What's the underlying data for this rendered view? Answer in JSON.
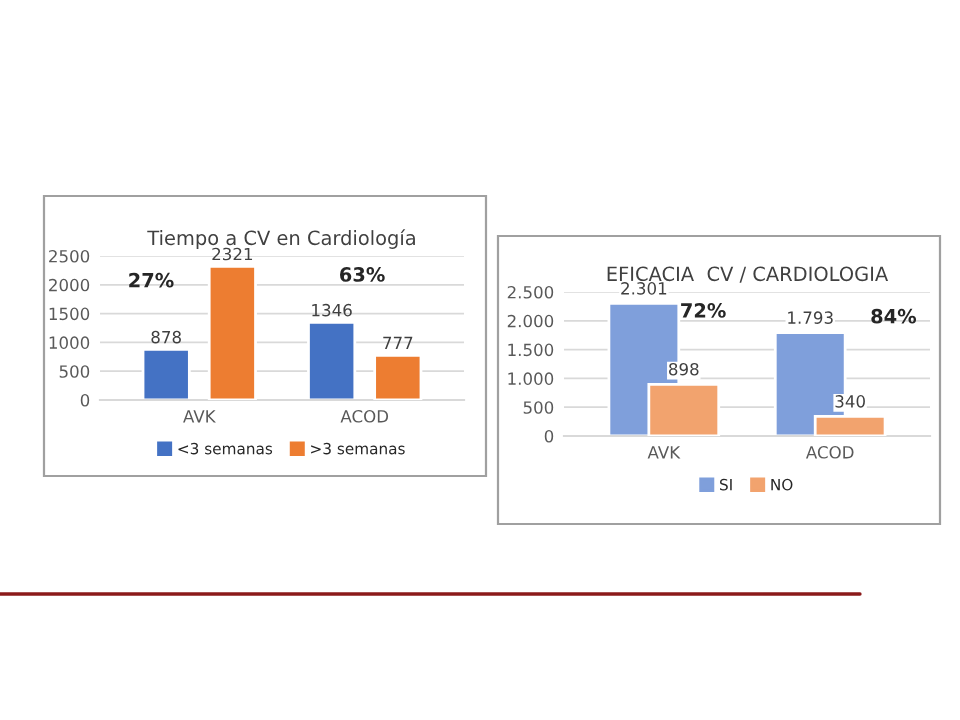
{
  "chart_data": [
    {
      "type": "bar",
      "title": "Tiempo a CV en Cardiología",
      "categories": [
        "AVK",
        "ACOD"
      ],
      "series": [
        {
          "name": "<3 semanas",
          "color": "#4472c4",
          "values": [
            878,
            1346
          ]
        },
        {
          "name": ">3 semanas",
          "color": "#ed7d31",
          "values": [
            2321,
            777
          ]
        }
      ],
      "ylim": [
        0,
        2500
      ],
      "yticks": [
        0,
        500,
        1000,
        1500,
        2000,
        2500
      ],
      "grid": "y",
      "legend": "bottom",
      "data_labels": true,
      "annotations": [
        "27%",
        "63%"
      ]
    },
    {
      "type": "bar",
      "title": "EFICACIA  CV / CARDIOLOGIA",
      "categories": [
        "AVK",
        "ACOD"
      ],
      "series": [
        {
          "name": "SI",
          "color": "#7f9fdb",
          "values": [
            2301,
            1793
          ],
          "value_labels": [
            "2.301",
            "1.793"
          ]
        },
        {
          "name": "NO",
          "color": "#f2a36e",
          "values": [
            898,
            340
          ],
          "value_labels": [
            "898",
            "340"
          ]
        }
      ],
      "ylim": [
        0,
        2500
      ],
      "yticks": [
        {
          "value": 0,
          "label": "0"
        },
        {
          "value": 500,
          "label": "500"
        },
        {
          "value": 1000,
          "label": "1.000"
        },
        {
          "value": 1500,
          "label": "1.500"
        },
        {
          "value": 2000,
          "label": "2.000"
        },
        {
          "value": 2500,
          "label": "2.500"
        }
      ],
      "grid": "y",
      "legend": "bottom",
      "annotations": [
        "72%",
        "84%"
      ]
    }
  ]
}
